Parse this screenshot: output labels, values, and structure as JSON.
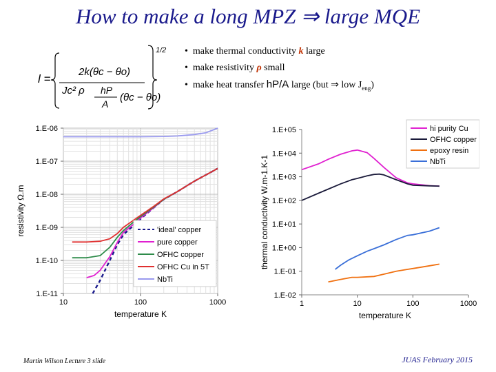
{
  "slide": {
    "title": "How to make a long MPZ ⇒ large MQE",
    "bullets": [
      {
        "pre": "make thermal conductivity ",
        "sym": "k",
        "post": " large"
      },
      {
        "pre": "make resistivity ",
        "sym": "ρ",
        "post": " small"
      },
      {
        "pre": "make heat transfer ",
        "sans": "hP/A",
        "post": " large  (but ⇒ low J",
        "sub": "eng",
        "end": ")"
      }
    ],
    "formula": {
      "lhs": "l =",
      "line1_num": "2k(θc − θo)",
      "line1_den": "Jc² ρ",
      "line2_num": "hP",
      "line2_den": "A",
      "line2_tail": "(θc − θo)",
      "exponent": "1/2"
    },
    "footer_left": "Martin Wilson Lecture 3 slide",
    "footer_right": "JUAS February 2015"
  },
  "colors": {
    "title": "#1a1a8c",
    "pure": "#e020d0",
    "ofhc": "#2e8b4a",
    "ofhc5t": "#e03030",
    "nbti": "#9999ee",
    "ideal": "#1a1a8c",
    "hi_purity": "#e020d0",
    "ofhc_k": "#1a1a3a",
    "epoxy": "#f07010",
    "nbti_k": "#3a6fd8"
  },
  "chart_data": [
    {
      "type": "line",
      "ylabel": "resistivity   Ω.m",
      "xlabel": "temperature K",
      "xscale": "log",
      "yscale": "log",
      "xlim": [
        10,
        1000
      ],
      "ylim": [
        1e-11,
        1e-06
      ],
      "xticks": [
        "10",
        "100",
        "1000"
      ],
      "yticks": [
        "1.E-11",
        "1.E-10",
        "1.E-09",
        "1.E-08",
        "1.E-07",
        "1.E-06"
      ],
      "grid": true,
      "legend_position": "bottom-right",
      "series": [
        {
          "name": "'ideal' copper",
          "dash": true,
          "x": [
            24,
            30,
            40,
            50,
            60,
            80,
            100,
            150,
            200,
            300,
            500,
            1000
          ],
          "y": [
            1e-11,
            2.5e-11,
            1e-10,
            3e-10,
            6e-10,
            1.1e-09,
            1.8e-09,
            4e-09,
            7e-09,
            1.2e-08,
            2.5e-08,
            6e-08
          ]
        },
        {
          "name": "pure copper",
          "x": [
            20,
            25,
            30,
            40,
            50,
            60,
            80,
            100,
            150,
            200,
            300,
            500,
            1000
          ],
          "y": [
            3e-11,
            3.5e-11,
            5e-11,
            1.3e-10,
            3.5e-10,
            7e-10,
            1.2e-09,
            1.9e-09,
            4e-09,
            7e-09,
            1.2e-08,
            2.5e-08,
            6e-08
          ]
        },
        {
          "name": "OFHC copper",
          "x": [
            13,
            20,
            30,
            40,
            50,
            60,
            80,
            100,
            150,
            200,
            300,
            500,
            1000
          ],
          "y": [
            1.2e-10,
            1.2e-10,
            1.4e-10,
            2.5e-10,
            5e-10,
            8e-10,
            1.4e-09,
            2.1e-09,
            4.2e-09,
            7e-09,
            1.2e-08,
            2.5e-08,
            6e-08
          ]
        },
        {
          "name": "OFHC Cu in 5T",
          "x": [
            13,
            20,
            30,
            40,
            50,
            60,
            80,
            100,
            150,
            200,
            300,
            500,
            1000
          ],
          "y": [
            3.6e-10,
            3.6e-10,
            3.8e-10,
            4.5e-10,
            6.5e-10,
            1e-09,
            1.6e-09,
            2.3e-09,
            4.4e-09,
            7.2e-09,
            1.2e-08,
            2.5e-08,
            6e-08
          ]
        },
        {
          "name": "NbTi",
          "x": [
            10,
            50,
            100,
            200,
            300,
            500,
            700,
            1000
          ],
          "y": [
            5.5e-07,
            5.5e-07,
            5.5e-07,
            5.6e-07,
            5.8e-07,
            6.4e-07,
            7.2e-07,
            1e-06
          ]
        }
      ]
    },
    {
      "type": "line",
      "ylabel": "thermal conductivity W.m-1.K-1",
      "xlabel": "temperature K",
      "xscale": "log",
      "yscale": "log",
      "xlim": [
        1,
        1000
      ],
      "ylim": [
        0.01,
        100000
      ],
      "xticks": [
        "1",
        "10",
        "100",
        "1000"
      ],
      "yticks": [
        "1.E-02",
        "1.E-01",
        "1.E+00",
        "1.E+01",
        "1.E+02",
        "1.E+03",
        "1.E+04",
        "1.E+05"
      ],
      "grid": false,
      "legend_position": "top-right",
      "series": [
        {
          "name": "hi purity Cu",
          "x": [
            1,
            2,
            3,
            5,
            8,
            10,
            15,
            20,
            30,
            50,
            80,
            100,
            200,
            300
          ],
          "y": [
            2000,
            3500,
            5500,
            9000,
            12500,
            13500,
            10500,
            6000,
            2500,
            900,
            550,
            500,
            420,
            400
          ]
        },
        {
          "name": "OFHC copper",
          "x": [
            1,
            2,
            3,
            5,
            8,
            10,
            15,
            20,
            25,
            30,
            50,
            80,
            100,
            200,
            300
          ],
          "y": [
            100,
            200,
            300,
            500,
            750,
            850,
            1100,
            1250,
            1300,
            1200,
            750,
            500,
            440,
            410,
            400
          ]
        },
        {
          "name": "epoxy resin",
          "x": [
            3,
            5,
            8,
            10,
            20,
            30,
            50,
            80,
            100,
            200,
            300
          ],
          "y": [
            0.035,
            0.045,
            0.055,
            0.055,
            0.06,
            0.075,
            0.1,
            0.12,
            0.13,
            0.17,
            0.2
          ]
        },
        {
          "name": "NbTi",
          "x": [
            4,
            5,
            7,
            10,
            15,
            20,
            30,
            50,
            80,
            100,
            200,
            300
          ],
          "y": [
            0.12,
            0.18,
            0.3,
            0.45,
            0.7,
            0.9,
            1.3,
            2.2,
            3.3,
            3.5,
            5,
            7
          ]
        }
      ]
    }
  ]
}
